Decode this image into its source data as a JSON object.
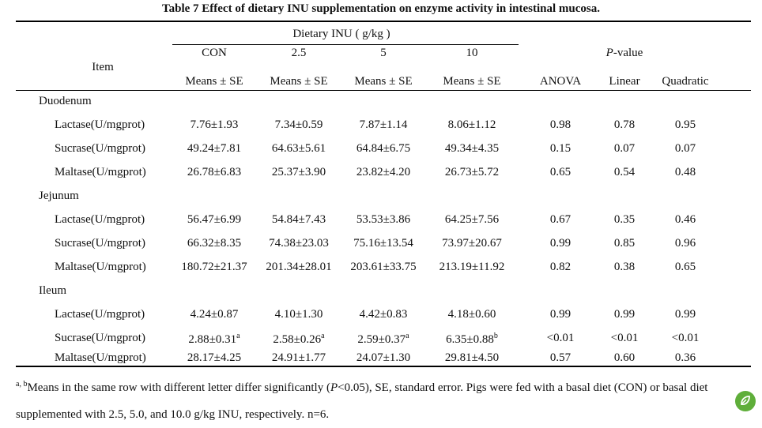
{
  "title": "Table 7 Effect of dietary INU supplementation on enzyme activity in intestinal mucosa.",
  "header": {
    "item": "Item",
    "dietary": "Dietary INU ( g/kg )",
    "doses": [
      "CON",
      "2.5",
      "5",
      "10"
    ],
    "means_label": "Means ± SE",
    "pvalue_italic": "P",
    "pvalue_rest": "-value",
    "stats": [
      "ANOVA",
      "Linear",
      "Quadratic"
    ]
  },
  "sections": [
    {
      "name": "Duodenum",
      "rows": [
        {
          "item": "Lactase(U/mgprot)",
          "values": [
            "7.76±1.93",
            "7.34±0.59",
            "7.87±1.14",
            "8.06±1.12"
          ],
          "sups": [
            "",
            "",
            "",
            ""
          ],
          "anova": "0.98",
          "linear": "0.78",
          "quadratic": "0.95"
        },
        {
          "item": "Sucrase(U/mgprot)",
          "values": [
            "49.24±7.81",
            "64.63±5.61",
            "64.84±6.75",
            "49.34±4.35"
          ],
          "sups": [
            "",
            "",
            "",
            ""
          ],
          "anova": "0.15",
          "linear": "0.07",
          "quadratic": "0.07"
        },
        {
          "item": "Maltase(U/mgprot)",
          "values": [
            "26.78±6.83",
            "25.37±3.90",
            "23.82±4.20",
            "26.73±5.72"
          ],
          "sups": [
            "",
            "",
            "",
            ""
          ],
          "anova": "0.65",
          "linear": "0.54",
          "quadratic": "0.48"
        }
      ]
    },
    {
      "name": "Jejunum",
      "rows": [
        {
          "item": "Lactase(U/mgprot)",
          "values": [
            "56.47±6.99",
            "54.84±7.43",
            "53.53±3.86",
            "64.25±7.56"
          ],
          "sups": [
            "",
            "",
            "",
            ""
          ],
          "anova": "0.67",
          "linear": "0.35",
          "quadratic": "0.46"
        },
        {
          "item": "Sucrase(U/mgprot)",
          "values": [
            "66.32±8.35",
            "74.38±23.03",
            "75.16±13.54",
            "73.97±20.67"
          ],
          "sups": [
            "",
            "",
            "",
            ""
          ],
          "anova": "0.99",
          "linear": "0.85",
          "quadratic": "0.96"
        },
        {
          "item": "Maltase(U/mgprot)",
          "values": [
            "180.72±21.37",
            "201.34±28.01",
            "203.61±33.75",
            "213.19±11.92"
          ],
          "sups": [
            "",
            "",
            "",
            ""
          ],
          "anova": "0.82",
          "linear": "0.38",
          "quadratic": "0.65"
        }
      ]
    },
    {
      "name": "Ileum",
      "rows": [
        {
          "item": "Lactase(U/mgprot)",
          "values": [
            "4.24±0.87",
            "4.10±1.30",
            "4.42±0.83",
            "4.18±0.60"
          ],
          "sups": [
            "",
            "",
            "",
            ""
          ],
          "anova": "0.99",
          "linear": "0.99",
          "quadratic": "0.99"
        },
        {
          "item": "Sucrase(U/mgprot)",
          "values": [
            "2.88±0.31",
            "2.58±0.26",
            "2.59±0.37",
            "6.35±0.88"
          ],
          "sups": [
            "a",
            "a",
            "a",
            "b"
          ],
          "anova": "<0.01",
          "linear": "<0.01",
          "quadratic": "<0.01"
        },
        {
          "item": "Maltase(U/mgprot)",
          "values": [
            "28.17±4.25",
            "24.91±1.77",
            "24.07±1.30",
            "29.81±4.50"
          ],
          "sups": [
            "",
            "",
            "",
            ""
          ],
          "anova": "0.57",
          "linear": "0.60",
          "quadratic": "0.36"
        }
      ]
    }
  ],
  "footnote": {
    "sup": "a, b",
    "part1": "Means in the same row with different letter differ significantly (",
    "p_italic": "P",
    "part2": "<0.05), SE, standard error. Pigs were fed with a basal diet (CON) or basal diet supplemented with 2.5, 5.0, and 10.0 g/kg INU, respectively. n=6."
  },
  "watermark_icon": "leaf-icon",
  "watermark_color": "#5fae3a"
}
